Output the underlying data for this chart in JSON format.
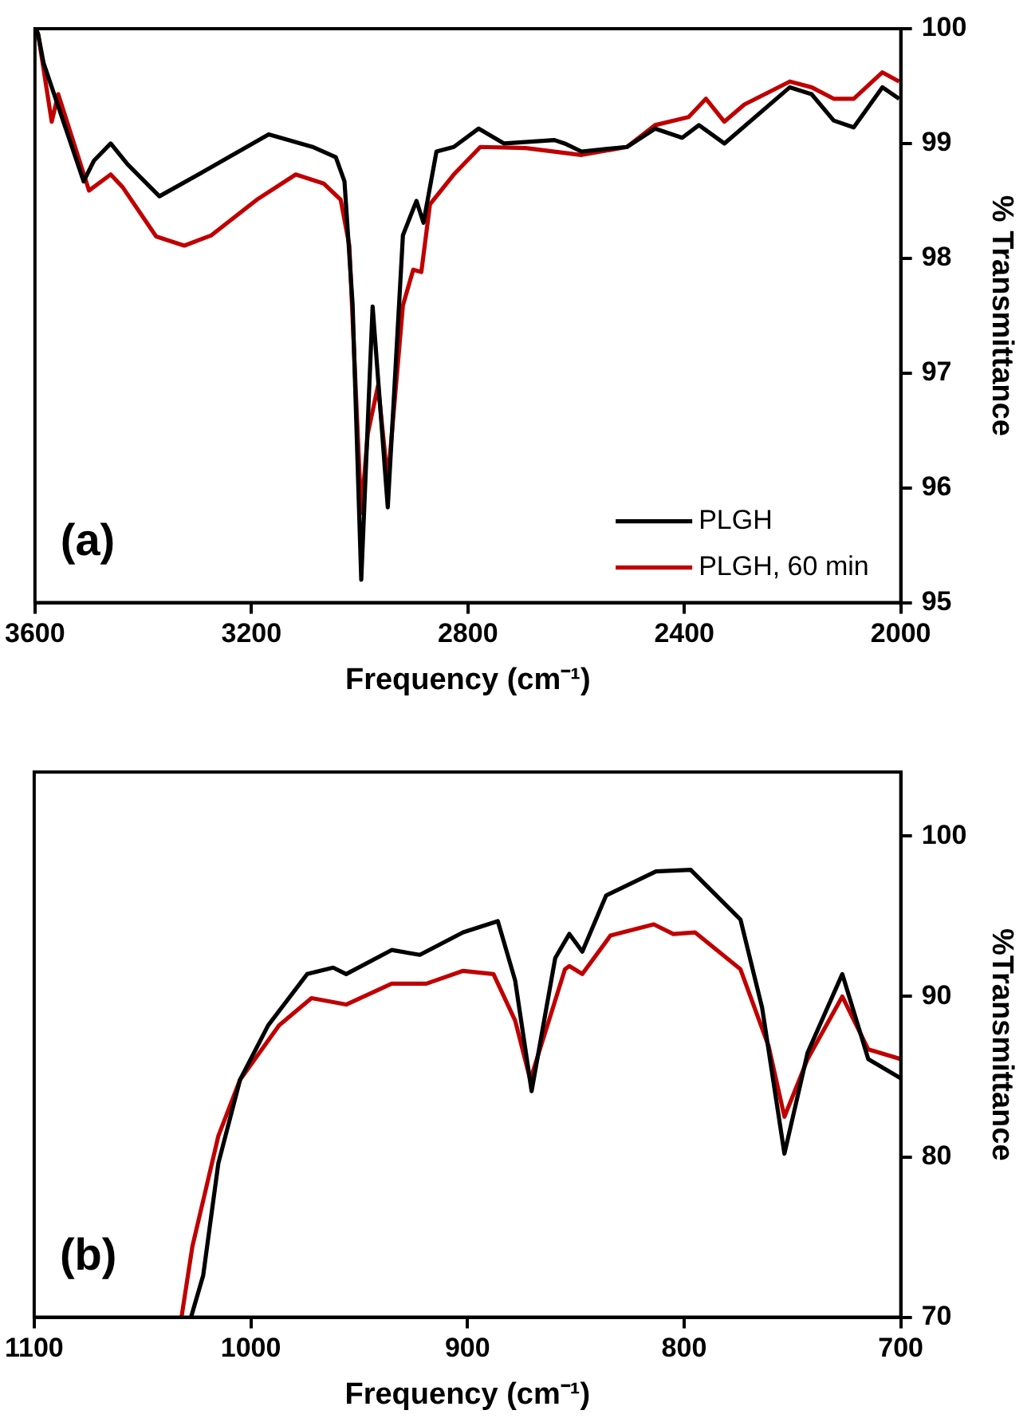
{
  "chart_data": [
    {
      "type": "line",
      "xlabel": "Frequency (cm⁻¹)",
      "ylabel": "% Transmittance",
      "annotations": [
        "(a)"
      ],
      "legend": "bottom right",
      "xlim": [
        3600,
        2000
      ],
      "xticks": [
        3600,
        3200,
        2800,
        2400,
        2000
      ],
      "ylim": [
        95,
        100
      ],
      "yticks": [
        95,
        96,
        97,
        98,
        99,
        100
      ],
      "series": [
        {
          "name": "PLGH",
          "color": "#000000",
          "x": [
            3598,
            3594,
            3584,
            3510,
            3491,
            3460,
            3429,
            3370,
            3283,
            3168,
            3087,
            3044,
            3028,
            3013,
            2997,
            2976,
            2948,
            2920,
            2895,
            2882,
            2858,
            2826,
            2780,
            2733,
            2640,
            2621,
            2590,
            2506,
            2454,
            2404,
            2373,
            2326,
            2205,
            2165,
            2124,
            2087,
            2034,
            2003
          ],
          "values": [
            100,
            99.95,
            99.7,
            98.67,
            98.85,
            99.0,
            98.82,
            98.54,
            98.77,
            99.08,
            98.97,
            98.88,
            98.67,
            97.6,
            95.2,
            97.58,
            95.83,
            98.2,
            98.5,
            98.31,
            98.93,
            98.97,
            99.13,
            99.0,
            99.03,
            99.0,
            98.93,
            98.97,
            99.13,
            99.05,
            99.16,
            99.0,
            99.49,
            99.43,
            99.2,
            99.14,
            99.49,
            99.39
          ]
        },
        {
          "name": "PLGH, 60 min",
          "color": "#c00000",
          "x": [
            3598,
            3594,
            3569,
            3557,
            3500,
            3460,
            3438,
            3376,
            3324,
            3274,
            3190,
            3118,
            3066,
            3035,
            3019,
            2997,
            2985,
            2966,
            2948,
            2920,
            2901,
            2886,
            2870,
            2826,
            2777,
            2693,
            2590,
            2506,
            2454,
            2392,
            2360,
            2326,
            2289,
            2205,
            2165,
            2124,
            2087,
            2034,
            2003
          ],
          "values": [
            100,
            99.95,
            99.19,
            99.43,
            98.59,
            98.73,
            98.62,
            98.19,
            98.11,
            98.2,
            98.51,
            98.73,
            98.65,
            98.51,
            98.11,
            95.78,
            96.47,
            96.89,
            96.06,
            97.59,
            97.9,
            97.88,
            98.47,
            98.73,
            98.97,
            98.96,
            98.9,
            98.97,
            99.16,
            99.23,
            99.39,
            99.19,
            99.34,
            99.54,
            99.49,
            99.39,
            99.39,
            99.62,
            99.54
          ]
        }
      ]
    },
    {
      "type": "line",
      "xlabel": "Frequency (cm⁻¹)",
      "ylabel": "%Transmittance",
      "annotations": [
        "(b)"
      ],
      "xlim": [
        1100,
        700
      ],
      "xticks": [
        1100,
        1000,
        900,
        800,
        700
      ],
      "ylim": [
        70,
        104
      ],
      "yticks": [
        70,
        80,
        90,
        100
      ],
      "series": [
        {
          "color": "#000000",
          "x": [
            1027.6,
            1022,
            1015,
            1005,
            992,
            974,
            962,
            956,
            935,
            922,
            902,
            886,
            878,
            870.4,
            859.5,
            853,
            847,
            836,
            813,
            797,
            774,
            764,
            753.7,
            743,
            727,
            715,
            700
          ],
          "values": [
            70,
            72.6,
            79.6,
            84.8,
            88.2,
            91.4,
            91.8,
            91.4,
            92.9,
            92.6,
            94.0,
            94.7,
            91.0,
            84.1,
            92.4,
            93.9,
            92.8,
            96.3,
            97.8,
            97.9,
            94.8,
            89.3,
            80.2,
            86.5,
            91.4,
            86.1,
            84.9
          ]
        },
        {
          "color": "#c00000",
          "x": [
            1032,
            1027,
            1015,
            1005,
            987,
            972,
            956,
            935,
            919,
            902,
            888,
            878,
            871,
            855,
            853,
            847,
            834,
            814,
            805,
            795,
            774,
            761,
            753.7,
            743,
            727,
            715,
            700
          ],
          "values": [
            70,
            74.4,
            81.3,
            84.8,
            88.2,
            89.9,
            89.5,
            90.8,
            90.8,
            91.6,
            91.4,
            88.5,
            84.8,
            91.7,
            91.9,
            91.4,
            93.8,
            94.5,
            93.9,
            94.0,
            91.7,
            86.9,
            82.5,
            86.1,
            90.0,
            86.7,
            86.1
          ]
        }
      ]
    }
  ]
}
